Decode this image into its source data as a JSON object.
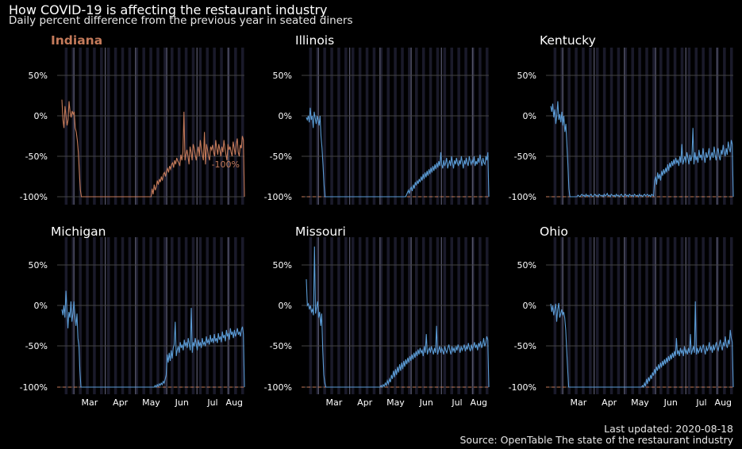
{
  "header": {
    "title": "How COVID-19 is affecting the restaurant industry",
    "subtitle": "Daily percent difference from the previous year in seated diners"
  },
  "footer": {
    "updated": "Last updated: 2020-08-18",
    "source": "Source: OpenTable The state of the restaurant industry"
  },
  "colors": {
    "highlight": "#c47a5a",
    "series": "#5b9bd5",
    "grid": "#444444",
    "weekend_band": "#1a1a2a",
    "month_line": "#55556a",
    "baseline_dashed": "#c47a5a"
  },
  "chart_data": [
    {
      "type": "line",
      "panel": "Indiana",
      "highlight": true,
      "x_start": "2020-02-18",
      "x_end": "2020-08-17",
      "xticks": [
        "Mar",
        "Apr",
        "May",
        "Jun",
        "Jul",
        "Aug"
      ],
      "yticks": [
        "50%",
        "0%",
        "-50%",
        "-100%"
      ],
      "ylim": [
        -100,
        80
      ],
      "annotation": "-100%",
      "values": [
        20,
        -5,
        -15,
        12,
        0,
        -12,
        -5,
        18,
        5,
        -2,
        6,
        2,
        5,
        -15,
        -20,
        -30,
        -45,
        -70,
        -92,
        -100,
        -100,
        -100,
        -100,
        -100,
        -100,
        -100,
        -100,
        -100,
        -100,
        -100,
        -100,
        -100,
        -100,
        -100,
        -100,
        -100,
        -100,
        -100,
        -100,
        -100,
        -100,
        -100,
        -100,
        -100,
        -100,
        -100,
        -100,
        -100,
        -100,
        -100,
        -100,
        -100,
        -100,
        -100,
        -100,
        -100,
        -100,
        -100,
        -100,
        -100,
        -100,
        -100,
        -100,
        -100,
        -100,
        -100,
        -100,
        -100,
        -100,
        -100,
        -100,
        -100,
        -100,
        -100,
        -100,
        -100,
        -100,
        -100,
        -100,
        -100,
        -100,
        -100,
        -100,
        -100,
        -100,
        -100,
        -100,
        -100,
        -90,
        -97,
        -85,
        -92,
        -88,
        -80,
        -85,
        -78,
        -82,
        -75,
        -80,
        -72,
        -70,
        -75,
        -68,
        -65,
        -70,
        -62,
        -66,
        -60,
        -58,
        -64,
        -55,
        -60,
        -52,
        -56,
        -58,
        -62,
        -48,
        -55,
        -45,
        5,
        -55,
        -48,
        -42,
        -50,
        -60,
        -38,
        -45,
        -55,
        -35,
        -40,
        -48,
        -55,
        -45,
        -38,
        -50,
        -30,
        -40,
        -48,
        -55,
        -20,
        -60,
        -35,
        -42,
        -50,
        -55,
        -38,
        -42,
        -36,
        -45,
        -50,
        -30,
        -40,
        -48,
        -35,
        -42,
        -50,
        -38,
        -45,
        -30,
        -40,
        -48,
        -55,
        -35,
        -42,
        -38,
        -45,
        -50,
        -32,
        -40,
        -48,
        -35,
        -28,
        -45,
        -50,
        -36,
        -40,
        -25,
        -30,
        -100
      ]
    },
    {
      "type": "line",
      "panel": "Illinois",
      "highlight": false,
      "x_start": "2020-02-18",
      "x_end": "2020-08-17",
      "xticks": [
        "Mar",
        "Apr",
        "May",
        "Jun",
        "Jul",
        "Aug"
      ],
      "yticks": [
        "50%",
        "0%",
        "-50%",
        "-100%"
      ],
      "ylim": [
        -100,
        80
      ],
      "values": [
        -2,
        -5,
        0,
        -8,
        10,
        -5,
        0,
        -15,
        5,
        -2,
        -10,
        0,
        -5,
        -12,
        0,
        -25,
        -40,
        -60,
        -85,
        -100,
        -100,
        -100,
        -100,
        -100,
        -100,
        -100,
        -100,
        -100,
        -100,
        -100,
        -100,
        -100,
        -100,
        -100,
        -100,
        -100,
        -100,
        -100,
        -100,
        -100,
        -100,
        -100,
        -100,
        -100,
        -100,
        -100,
        -100,
        -100,
        -100,
        -100,
        -100,
        -100,
        -100,
        -100,
        -100,
        -100,
        -100,
        -100,
        -100,
        -100,
        -100,
        -100,
        -100,
        -100,
        -100,
        -100,
        -100,
        -100,
        -100,
        -100,
        -100,
        -100,
        -100,
        -100,
        -100,
        -100,
        -100,
        -100,
        -100,
        -100,
        -100,
        -100,
        -100,
        -100,
        -100,
        -100,
        -100,
        -100,
        -100,
        -100,
        -100,
        -100,
        -100,
        -100,
        -100,
        -100,
        -100,
        -100,
        -100,
        -100,
        -100,
        -100,
        -98,
        -95,
        -92,
        -96,
        -90,
        -88,
        -93,
        -85,
        -90,
        -82,
        -86,
        -80,
        -84,
        -78,
        -82,
        -75,
        -80,
        -72,
        -78,
        -70,
        -76,
        -68,
        -74,
        -66,
        -72,
        -64,
        -70,
        -62,
        -68,
        -60,
        -66,
        -58,
        -64,
        -56,
        -62,
        -45,
        -60,
        -65,
        -55,
        -62,
        -58,
        -52,
        -65,
        -60,
        -55,
        -62,
        -50,
        -58,
        -65,
        -55,
        -60,
        -52,
        -58,
        -62,
        -55,
        -60,
        -50,
        -58,
        -65,
        -55,
        -60,
        -52,
        -58,
        -62,
        -50,
        -56,
        -60,
        -55,
        -58,
        -50,
        -62,
        -56,
        -60,
        -52,
        -58,
        -48,
        -55,
        -62,
        -52,
        -58,
        -60,
        -50,
        -55,
        -45,
        -100
      ]
    },
    {
      "type": "line",
      "panel": "Kentucky",
      "highlight": false,
      "x_start": "2020-02-18",
      "x_end": "2020-08-17",
      "xticks": [
        "Mar",
        "Apr",
        "May",
        "Jun",
        "Jul",
        "Aug"
      ],
      "yticks": [
        "50%",
        "0%",
        "-50%",
        "-100%"
      ],
      "ylim": [
        -100,
        80
      ],
      "values": [
        12,
        5,
        15,
        -2,
        8,
        -10,
        0,
        18,
        -5,
        2,
        -8,
        5,
        -12,
        0,
        -20,
        -10,
        -35,
        -60,
        -90,
        -100,
        -100,
        -100,
        -100,
        -100,
        -100,
        -100,
        -100,
        -98,
        -99,
        -100,
        -98,
        -97,
        -99,
        -98,
        -100,
        -97,
        -99,
        -98,
        -100,
        -98,
        -97,
        -99,
        -100,
        -98,
        -97,
        -99,
        -98,
        -100,
        -97,
        -98,
        -99,
        -98,
        -100,
        -97,
        -99,
        -98,
        -96,
        -99,
        -98,
        -100,
        -97,
        -98,
        -99,
        -98,
        -100,
        -97,
        -99,
        -98,
        -100,
        -98,
        -97,
        -99,
        -100,
        -98,
        -97,
        -99,
        -98,
        -100,
        -97,
        -98,
        -99,
        -98,
        -100,
        -97,
        -98,
        -99,
        -98,
        -100,
        -97,
        -99,
        -98,
        -100,
        -98,
        -97,
        -99,
        -98,
        -97,
        -99,
        -98,
        -100,
        -97,
        -98,
        -99,
        -80,
        -75,
        -85,
        -70,
        -78,
        -72,
        -80,
        -68,
        -74,
        -66,
        -72,
        -64,
        -70,
        -60,
        -68,
        -58,
        -64,
        -56,
        -62,
        -54,
        -60,
        -52,
        -58,
        -55,
        -62,
        -50,
        -58,
        -35,
        -60,
        -55,
        -50,
        -58,
        -45,
        -52,
        -60,
        -48,
        -56,
        -50,
        -15,
        -60,
        -45,
        -55,
        -50,
        -58,
        -42,
        -52,
        -48,
        -55,
        -40,
        -50,
        -58,
        -45,
        -52,
        -48,
        -40,
        -55,
        -50,
        -45,
        -52,
        -38,
        -48,
        -55,
        -45,
        -40,
        -50,
        -55,
        -42,
        -48,
        -36,
        -45,
        -50,
        -40,
        -48,
        -32,
        -40,
        -45,
        -30,
        -35,
        -100
      ]
    },
    {
      "type": "line",
      "panel": "Michigan",
      "highlight": false,
      "x_start": "2020-02-18",
      "x_end": "2020-08-17",
      "xticks": [
        "Mar",
        "Apr",
        "May",
        "Jun",
        "Jul",
        "Aug"
      ],
      "yticks": [
        "50%",
        "0%",
        "-50%",
        "-100%"
      ],
      "ylim": [
        -100,
        80
      ],
      "values": [
        -5,
        -12,
        0,
        -15,
        18,
        -5,
        -28,
        -8,
        -15,
        5,
        -20,
        -10,
        5,
        -12,
        -25,
        -10,
        -40,
        -50,
        -80,
        -100,
        -100,
        -100,
        -100,
        -100,
        -100,
        -100,
        -100,
        -100,
        -100,
        -100,
        -100,
        -100,
        -100,
        -100,
        -100,
        -100,
        -100,
        -100,
        -100,
        -100,
        -100,
        -100,
        -100,
        -100,
        -100,
        -100,
        -100,
        -100,
        -100,
        -100,
        -100,
        -100,
        -100,
        -100,
        -100,
        -100,
        -100,
        -100,
        -100,
        -100,
        -100,
        -100,
        -100,
        -100,
        -100,
        -100,
        -100,
        -100,
        -100,
        -100,
        -100,
        -100,
        -100,
        -100,
        -100,
        -100,
        -100,
        -100,
        -100,
        -100,
        -100,
        -100,
        -100,
        -100,
        -100,
        -100,
        -100,
        -100,
        -100,
        -100,
        -100,
        -100,
        -100,
        -98,
        -100,
        -97,
        -99,
        -96,
        -98,
        -95,
        -97,
        -93,
        -95,
        -90,
        -85,
        -60,
        -70,
        -58,
        -68,
        -55,
        -65,
        -52,
        -48,
        -20,
        -62,
        -55,
        -50,
        -58,
        -45,
        -52,
        -48,
        -55,
        -42,
        -50,
        -45,
        -52,
        -40,
        -48,
        -55,
        -3,
        -58,
        -45,
        -50,
        -40,
        -48,
        -55,
        -42,
        -50,
        -45,
        -52,
        -40,
        -48,
        -45,
        -50,
        -38,
        -46,
        -42,
        -48,
        -36,
        -45,
        -40,
        -46,
        -35,
        -44,
        -40,
        -46,
        -34,
        -42,
        -38,
        -45,
        -32,
        -40,
        -36,
        -44,
        -30,
        -38,
        -34,
        -42,
        -28,
        -36,
        -32,
        -40,
        -30,
        -38,
        -34,
        -28,
        -36,
        -32,
        -38,
        -30,
        -26,
        -35,
        -100
      ]
    },
    {
      "type": "line",
      "panel": "Missouri",
      "highlight": false,
      "x_start": "2020-02-18",
      "x_end": "2020-08-17",
      "xticks": [
        "Mar",
        "Apr",
        "May",
        "Jun",
        "Jul",
        "Aug"
      ],
      "yticks": [
        "50%",
        "0%",
        "-50%",
        "-100%"
      ],
      "ylim": [
        -100,
        80
      ],
      "values": [
        32,
        0,
        2,
        -5,
        0,
        -8,
        -5,
        -12,
        72,
        -10,
        -2,
        5,
        -15,
        -8,
        -25,
        -10,
        -55,
        -85,
        -95,
        -100,
        -100,
        -100,
        -100,
        -100,
        -100,
        -100,
        -100,
        -100,
        -100,
        -100,
        -100,
        -100,
        -100,
        -100,
        -100,
        -100,
        -100,
        -100,
        -100,
        -100,
        -100,
        -100,
        -100,
        -100,
        -100,
        -100,
        -100,
        -100,
        -100,
        -100,
        -100,
        -100,
        -100,
        -100,
        -100,
        -100,
        -100,
        -100,
        -100,
        -100,
        -100,
        -100,
        -100,
        -100,
        -100,
        -100,
        -100,
        -100,
        -100,
        -100,
        -100,
        -100,
        -100,
        -98,
        -100,
        -97,
        -99,
        -95,
        -98,
        -92,
        -96,
        -90,
        -94,
        -85,
        -90,
        -80,
        -88,
        -78,
        -85,
        -75,
        -82,
        -72,
        -80,
        -70,
        -78,
        -68,
        -75,
        -66,
        -72,
        -64,
        -70,
        -62,
        -68,
        -60,
        -66,
        -58,
        -64,
        -56,
        -62,
        -54,
        -60,
        -52,
        -58,
        -55,
        -62,
        -50,
        -58,
        -35,
        -60,
        -55,
        -52,
        -58,
        -50,
        -55,
        -60,
        -52,
        -58,
        -25,
        -60,
        -55,
        -50,
        -58,
        -52,
        -56,
        -60,
        -50,
        -55,
        -58,
        -52,
        -48,
        -55,
        -60,
        -50,
        -56,
        -52,
        -58,
        -50,
        -55,
        -48,
        -52,
        -58,
        -50,
        -55,
        -52,
        -48,
        -56,
        -50,
        -54,
        -46,
        -52,
        -56,
        -48,
        -54,
        -50,
        -45,
        -52,
        -48,
        -55,
        -46,
        -50,
        -44,
        -52,
        -48,
        -40,
        -50,
        -46,
        -38,
        -42,
        -100
      ]
    },
    {
      "type": "line",
      "panel": "Ohio",
      "highlight": false,
      "x_start": "2020-02-18",
      "x_end": "2020-08-17",
      "xticks": [
        "Mar",
        "Apr",
        "May",
        "Jun",
        "Jul",
        "Aug"
      ],
      "yticks": [
        "50%",
        "0%",
        "-50%",
        "-100%"
      ],
      "ylim": [
        -100,
        80
      ],
      "values": [
        2,
        -8,
        0,
        -12,
        -5,
        2,
        -20,
        -5,
        3,
        -15,
        -10,
        -5,
        -12,
        -8,
        -15,
        -30,
        -55,
        -80,
        -100,
        -100,
        -100,
        -100,
        -100,
        -100,
        -100,
        -100,
        -100,
        -100,
        -100,
        -100,
        -100,
        -100,
        -100,
        -100,
        -100,
        -100,
        -100,
        -100,
        -100,
        -100,
        -100,
        -100,
        -100,
        -100,
        -100,
        -100,
        -100,
        -100,
        -100,
        -100,
        -100,
        -100,
        -100,
        -100,
        -100,
        -100,
        -100,
        -100,
        -100,
        -100,
        -100,
        -100,
        -100,
        -100,
        -100,
        -100,
        -100,
        -100,
        -100,
        -100,
        -100,
        -100,
        -100,
        -100,
        -100,
        -100,
        -100,
        -100,
        -100,
        -100,
        -100,
        -100,
        -100,
        -100,
        -100,
        -100,
        -100,
        -100,
        -100,
        -100,
        -100,
        -100,
        -98,
        -100,
        -95,
        -99,
        -90,
        -96,
        -88,
        -93,
        -85,
        -90,
        -82,
        -86,
        -78,
        -84,
        -75,
        -80,
        -72,
        -78,
        -70,
        -76,
        -68,
        -74,
        -66,
        -72,
        -64,
        -70,
        -62,
        -68,
        -60,
        -66,
        -58,
        -64,
        -56,
        -62,
        -40,
        -60,
        -55,
        -62,
        -52,
        -58,
        -55,
        -62,
        -50,
        -58,
        -55,
        -60,
        -52,
        -58,
        -35,
        -60,
        -55,
        -50,
        -58,
        5,
        -60,
        -52,
        -58,
        -55,
        -50,
        -58,
        -52,
        -48,
        -55,
        -60,
        -50,
        -56,
        -52,
        -45,
        -55,
        -50,
        -58,
        -48,
        -55,
        -50,
        -45,
        -52,
        -55,
        -48,
        -42,
        -50,
        -55,
        -45,
        -50,
        -38,
        -48,
        -52,
        -42,
        -48,
        -30,
        -40,
        -45,
        -100
      ]
    }
  ]
}
